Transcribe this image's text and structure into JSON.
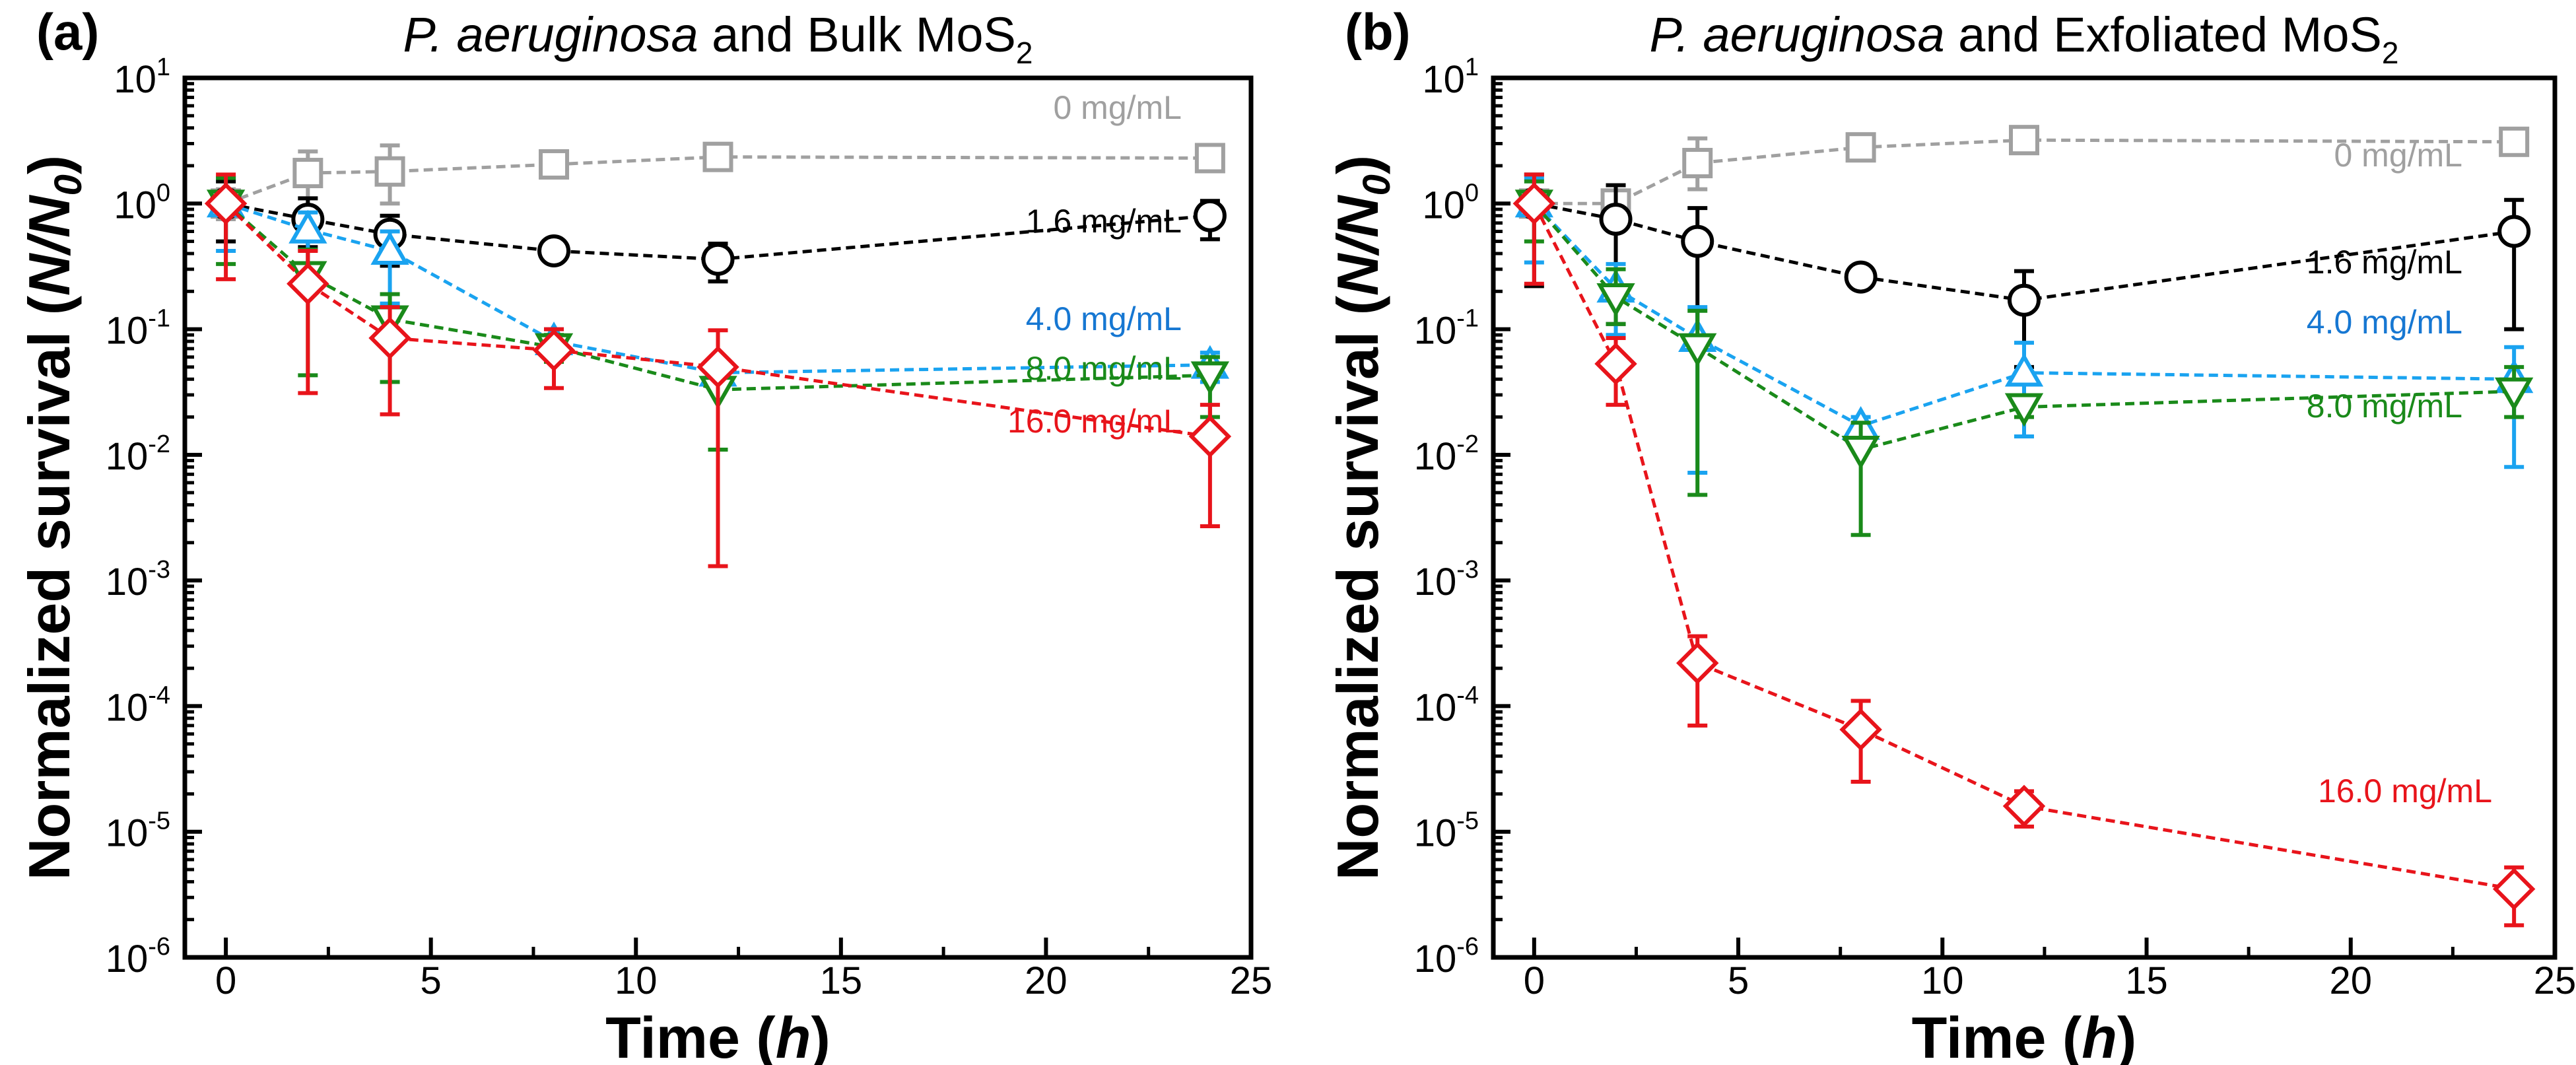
{
  "chart_data": [
    {
      "type": "line",
      "panel_label": "(a)",
      "title": {
        "italic": "P. aeruginosa",
        "rest": " and Bulk MoS",
        "sub": "2"
      },
      "xlabel": {
        "text": "Time (",
        "italic": "h",
        "close": ")"
      },
      "ylabel": {
        "text": "Normalized survival (",
        "italic": "N/N",
        "sub": "0",
        "close": ")"
      },
      "xlim": [
        -1,
        25
      ],
      "ylim": [
        1e-06,
        10
      ],
      "yscale": "log",
      "xticks": [
        "0",
        "5",
        "10",
        "15",
        "20",
        "25"
      ],
      "yticks": [
        {
          "base": "10",
          "exp": "1"
        },
        {
          "base": "10",
          "exp": "0"
        },
        {
          "base": "10",
          "exp": "-1"
        },
        {
          "base": "10",
          "exp": "-2"
        },
        {
          "base": "10",
          "exp": "-3"
        },
        {
          "base": "10",
          "exp": "-4"
        },
        {
          "base": "10",
          "exp": "-5"
        },
        {
          "base": "10",
          "exp": "-6"
        }
      ],
      "x": [
        0,
        2,
        4,
        8,
        12,
        24
      ],
      "series": [
        {
          "name": "0 mg/mL",
          "color": "#a0a0a0",
          "marker": "square",
          "values": [
            1.0,
            1.75,
            1.8,
            2.05,
            2.35,
            2.3
          ],
          "err_low": [
            0.75,
            1.1,
            1.0,
            1.85,
            2.1,
            2.05
          ],
          "err_high": [
            1.3,
            2.6,
            2.9,
            2.25,
            2.6,
            2.55
          ]
        },
        {
          "name": "1.6 mg/mL",
          "color": "#000000",
          "marker": "circle",
          "values": [
            1.0,
            0.75,
            0.57,
            0.42,
            0.36,
            0.8
          ],
          "err_low": [
            0.5,
            0.45,
            0.32,
            0.35,
            0.24,
            0.52
          ],
          "err_high": [
            1.5,
            1.1,
            0.8,
            0.5,
            0.48,
            1.05
          ]
        },
        {
          "name": "4.0 mg/mL",
          "color": "#1aa3f0",
          "label_color": "#1677d2",
          "marker": "triangle-up",
          "values": [
            1.0,
            0.62,
            0.42,
            0.08,
            0.045,
            0.052
          ],
          "err_low": [
            0.42,
            0.3,
            0.16,
            0.06,
            0.04,
            0.038
          ],
          "err_high": [
            1.6,
            0.85,
            0.6,
            0.1,
            0.05,
            0.065
          ]
        },
        {
          "name": "8.0 mg/mL",
          "color": "#1a8a1a",
          "marker": "triangle-down",
          "values": [
            1.0,
            0.27,
            0.12,
            0.072,
            0.033,
            0.043
          ],
          "err_low": [
            0.33,
            0.043,
            0.038,
            0.055,
            0.011,
            0.02
          ],
          "err_high": [
            1.6,
            0.43,
            0.19,
            0.09,
            0.05,
            0.06
          ]
        },
        {
          "name": "16.0 mg/mL",
          "color": "#e8141b",
          "marker": "diamond",
          "values": [
            1.0,
            0.23,
            0.085,
            0.068,
            0.05,
            0.014
          ],
          "err_low": [
            0.25,
            0.031,
            0.021,
            0.034,
            0.0013,
            0.0027
          ],
          "err_high": [
            1.7,
            0.42,
            0.15,
            0.1,
            0.098,
            0.025
          ]
        }
      ]
    },
    {
      "type": "line",
      "panel_label": "(b)",
      "title": {
        "italic": "P. aeruginosa",
        "rest": " and Exfoliated MoS",
        "sub": "2"
      },
      "xlabel": {
        "text": "Time (",
        "italic": "h",
        "close": ")"
      },
      "ylabel": {
        "text": "Normalized survival (",
        "italic": "N/N",
        "sub": "0",
        "close": ")"
      },
      "xlim": [
        -1,
        25
      ],
      "ylim": [
        1e-06,
        10
      ],
      "yscale": "log",
      "xticks": [
        "0",
        "5",
        "10",
        "15",
        "20",
        "25"
      ],
      "yticks": [
        {
          "base": "10",
          "exp": "1"
        },
        {
          "base": "10",
          "exp": "0"
        },
        {
          "base": "10",
          "exp": "-1"
        },
        {
          "base": "10",
          "exp": "-2"
        },
        {
          "base": "10",
          "exp": "-3"
        },
        {
          "base": "10",
          "exp": "-4"
        },
        {
          "base": "10",
          "exp": "-5"
        },
        {
          "base": "10",
          "exp": "-6"
        }
      ],
      "x": [
        0,
        2,
        4,
        8,
        12,
        24
      ],
      "series": [
        {
          "name": "0 mg/mL",
          "color": "#a0a0a0",
          "marker": "square",
          "values": [
            1.0,
            1.0,
            2.1,
            2.8,
            3.2,
            3.1
          ],
          "err_low": [
            0.85,
            0.85,
            1.3,
            2.6,
            3.0,
            2.9
          ],
          "err_high": [
            1.15,
            1.15,
            3.3,
            3.0,
            3.4,
            3.3
          ]
        },
        {
          "name": "1.6 mg/mL",
          "color": "#000000",
          "marker": "circle",
          "values": [
            1.0,
            0.75,
            0.5,
            0.26,
            0.17,
            0.6
          ],
          "err_low": [
            0.22,
            0.11,
            0.08,
            0.22,
            0.05,
            0.1
          ],
          "err_high": [
            1.7,
            1.4,
            0.92,
            0.3,
            0.29,
            1.07
          ]
        },
        {
          "name": "4.0 mg/mL",
          "color": "#1aa3f0",
          "label_color": "#1677d2",
          "marker": "triangle-up",
          "values": [
            1.0,
            0.21,
            0.085,
            0.017,
            0.045,
            0.04
          ],
          "err_low": [
            0.34,
            0.09,
            0.0072,
            0.013,
            0.014,
            0.008
          ],
          "err_high": [
            1.6,
            0.33,
            0.15,
            0.02,
            0.078,
            0.072
          ]
        },
        {
          "name": "8.0 mg/mL",
          "color": "#1a8a1a",
          "marker": "triangle-down",
          "values": [
            1.0,
            0.18,
            0.072,
            0.011,
            0.024,
            0.032
          ],
          "err_low": [
            0.5,
            0.11,
            0.0048,
            0.0023,
            0.02,
            0.02
          ],
          "err_high": [
            1.5,
            0.3,
            0.14,
            0.018,
            0.028,
            0.05
          ]
        },
        {
          "name": "16.0 mg/mL",
          "color": "#e8141b",
          "marker": "diamond",
          "values": [
            1.0,
            0.053,
            0.00022,
            6.5e-05,
            1.6e-05,
            3.5e-06
          ],
          "err_low": [
            0.23,
            0.025,
            7e-05,
            2.5e-05,
            1.1e-05,
            1.8e-06
          ],
          "err_high": [
            1.7,
            0.085,
            0.00036,
            0.00011,
            2.1e-05,
            5.2e-06
          ]
        }
      ]
    }
  ]
}
